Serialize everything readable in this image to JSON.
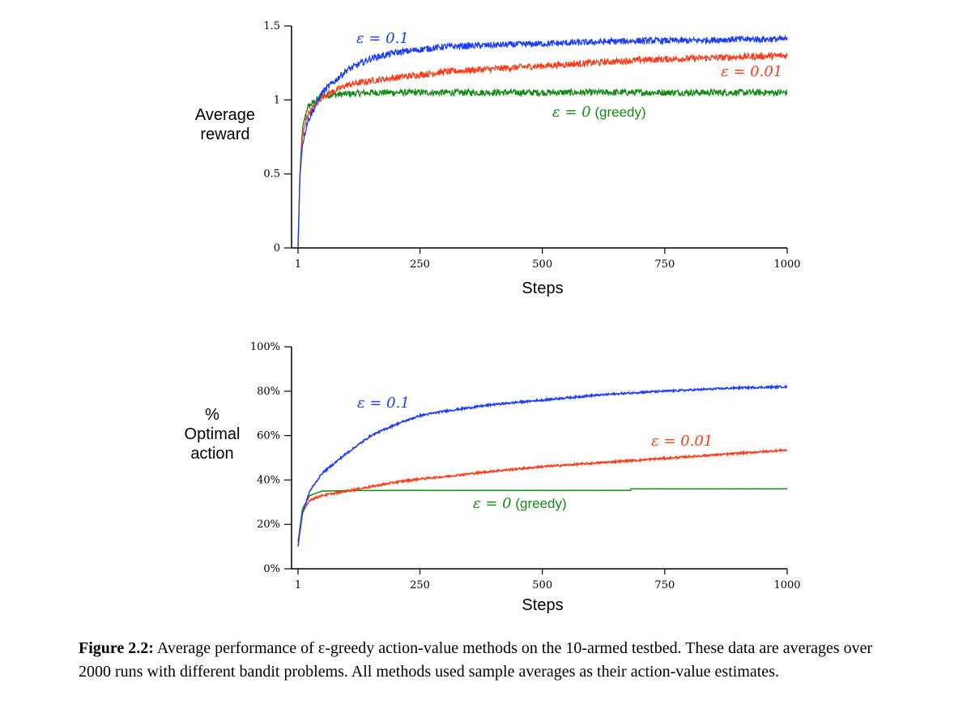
{
  "caption": {
    "label": "Figure 2.2:",
    "text": "Average performance of ε-greedy action-value methods on the 10-armed testbed. These data are averages over 2000 runs with different bandit problems. All methods used sample averages as their action-value estimates."
  },
  "colors": {
    "blue": "#1a3cff",
    "red": "#ff3b1a",
    "green": "#138a13"
  },
  "chart_data": [
    {
      "type": "line",
      "ylabel": "Average\nreward",
      "xlabel": "Steps",
      "xlim": [
        1,
        1000
      ],
      "ylim": [
        0,
        1.5
      ],
      "xticks": [
        "1",
        "250",
        "500",
        "750",
        "1000"
      ],
      "yticks": [
        "0",
        "0.5",
        "1",
        "1.5"
      ],
      "series": [
        {
          "name": "ε = 0.1",
          "label_main": "ε = 0.1",
          "label_suffix": "",
          "color": "#1a3cff",
          "x": [
            1,
            5,
            10,
            20,
            50,
            100,
            150,
            200,
            250,
            300,
            400,
            500,
            600,
            700,
            800,
            900,
            1000
          ],
          "values": [
            0.0,
            0.5,
            0.7,
            0.85,
            1.05,
            1.2,
            1.28,
            1.32,
            1.34,
            1.36,
            1.37,
            1.38,
            1.39,
            1.4,
            1.4,
            1.41,
            1.41
          ]
        },
        {
          "name": "ε = 0.01",
          "label_main": "ε = 0.01",
          "label_suffix": "",
          "color": "#ff3b1a",
          "x": [
            1,
            5,
            10,
            20,
            50,
            100,
            150,
            200,
            250,
            300,
            400,
            500,
            600,
            700,
            800,
            900,
            1000
          ],
          "values": [
            0.0,
            0.5,
            0.75,
            0.9,
            1.02,
            1.1,
            1.13,
            1.15,
            1.17,
            1.19,
            1.21,
            1.23,
            1.25,
            1.27,
            1.28,
            1.29,
            1.3
          ]
        },
        {
          "name": "ε = 0 (greedy)",
          "label_main": "ε = 0",
          "label_suffix": " (greedy)",
          "color": "#138a13",
          "x": [
            1,
            5,
            10,
            20,
            50,
            100,
            150,
            200,
            250,
            300,
            400,
            500,
            600,
            700,
            800,
            900,
            1000
          ],
          "values": [
            0.0,
            0.5,
            0.8,
            0.95,
            1.03,
            1.04,
            1.05,
            1.05,
            1.05,
            1.05,
            1.05,
            1.05,
            1.05,
            1.05,
            1.05,
            1.05,
            1.05
          ]
        }
      ]
    },
    {
      "type": "line",
      "ylabel": "%\nOptimal\naction",
      "xlabel": "Steps",
      "xlim": [
        1,
        1000
      ],
      "ylim": [
        0,
        100
      ],
      "xticks": [
        "1",
        "250",
        "500",
        "750",
        "1000"
      ],
      "yticks": [
        "0%",
        "20%",
        "40%",
        "60%",
        "80%",
        "100%"
      ],
      "series": [
        {
          "name": "ε = 0.1",
          "label_main": "ε = 0.1",
          "label_suffix": "",
          "color": "#1a3cff",
          "x": [
            1,
            10,
            25,
            50,
            100,
            150,
            200,
            250,
            300,
            400,
            500,
            600,
            700,
            800,
            900,
            1000
          ],
          "values": [
            10,
            25,
            35,
            43,
            52,
            60,
            65,
            69,
            71,
            74,
            76,
            78,
            79.5,
            80.5,
            81.5,
            82
          ]
        },
        {
          "name": "ε = 0.01",
          "label_main": "ε = 0.01",
          "label_suffix": "",
          "color": "#ff3b1a",
          "x": [
            1,
            10,
            25,
            50,
            100,
            150,
            200,
            250,
            300,
            400,
            500,
            600,
            700,
            800,
            900,
            1000
          ],
          "values": [
            12,
            25,
            31,
            33,
            35,
            37,
            39,
            40.5,
            41.5,
            44,
            46,
            47.5,
            49,
            50.5,
            52,
            53.5
          ]
        },
        {
          "name": "ε = 0 (greedy)",
          "label_main": "ε = 0",
          "label_suffix": " (greedy)",
          "color": "#138a13",
          "x": [
            1,
            10,
            25,
            50,
            100,
            200,
            300,
            400,
            500,
            600,
            680,
            681,
            700,
            800,
            900,
            1000
          ],
          "values": [
            12,
            27,
            33,
            35,
            35.2,
            35.3,
            35.3,
            35.3,
            35.3,
            35.3,
            35.3,
            36,
            36,
            36,
            36,
            36
          ]
        }
      ]
    }
  ]
}
